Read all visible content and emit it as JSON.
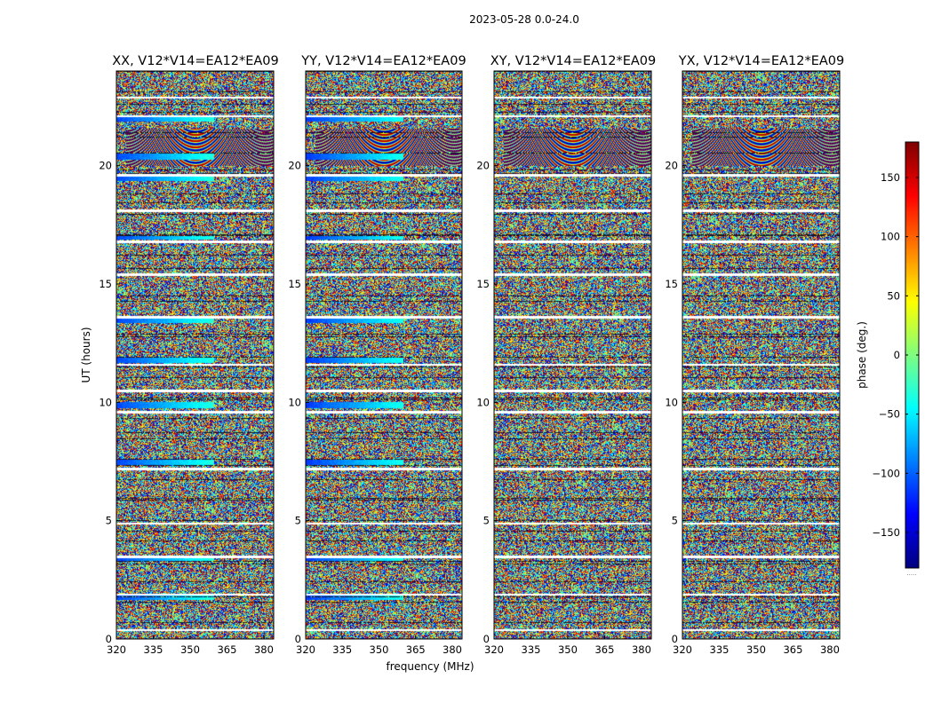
{
  "chart_data": {
    "type": "heatmap",
    "suptitle": "2023-05-28 0.0-24.0",
    "xlabel": "frequency (MHz)",
    "ylabel": "UT (hours)",
    "xlim": [
      320,
      384
    ],
    "ylim": [
      0,
      24
    ],
    "xticks": [
      "320",
      "335",
      "350",
      "365",
      "380"
    ],
    "xtick_values": [
      320,
      335,
      350,
      365,
      380
    ],
    "yticks": [
      "0",
      "5",
      "10",
      "15",
      "20"
    ],
    "ytick_values": [
      0,
      5,
      10,
      15,
      20
    ],
    "colorbar": {
      "label": "phase (deg.)",
      "range": [
        -180,
        180
      ],
      "ticks": [
        "−150",
        "−100",
        "−50",
        "0",
        "50",
        "100",
        "150"
      ],
      "tick_values": [
        -150,
        -100,
        -50,
        0,
        50,
        100,
        150
      ],
      "colormap": "jet",
      "note": "....."
    },
    "panels": [
      {
        "title": "XX, V12*V14=EA12*EA09",
        "coherent_phase_deg": -110
      },
      {
        "title": "YY, V12*V14=EA12*EA09",
        "coherent_phase_deg": -115
      },
      {
        "title": "XY, V12*V14=EA12*EA09",
        "coherent_phase_deg": null
      },
      {
        "title": "YX, V12*V14=EA12*EA09",
        "coherent_phase_deg": null
      }
    ],
    "flagged_ut_hours": [
      0.4,
      1.9,
      3.5,
      4.9,
      7.2,
      9.6,
      10.5,
      11.6,
      13.6,
      15.4,
      16.8,
      18.1,
      19.6,
      22.1,
      22.9
    ],
    "coherent_ut_hours": [
      1.8,
      3.4,
      7.5,
      9.9,
      11.8,
      13.5,
      17.0,
      19.5,
      20.4,
      22.0
    ]
  }
}
